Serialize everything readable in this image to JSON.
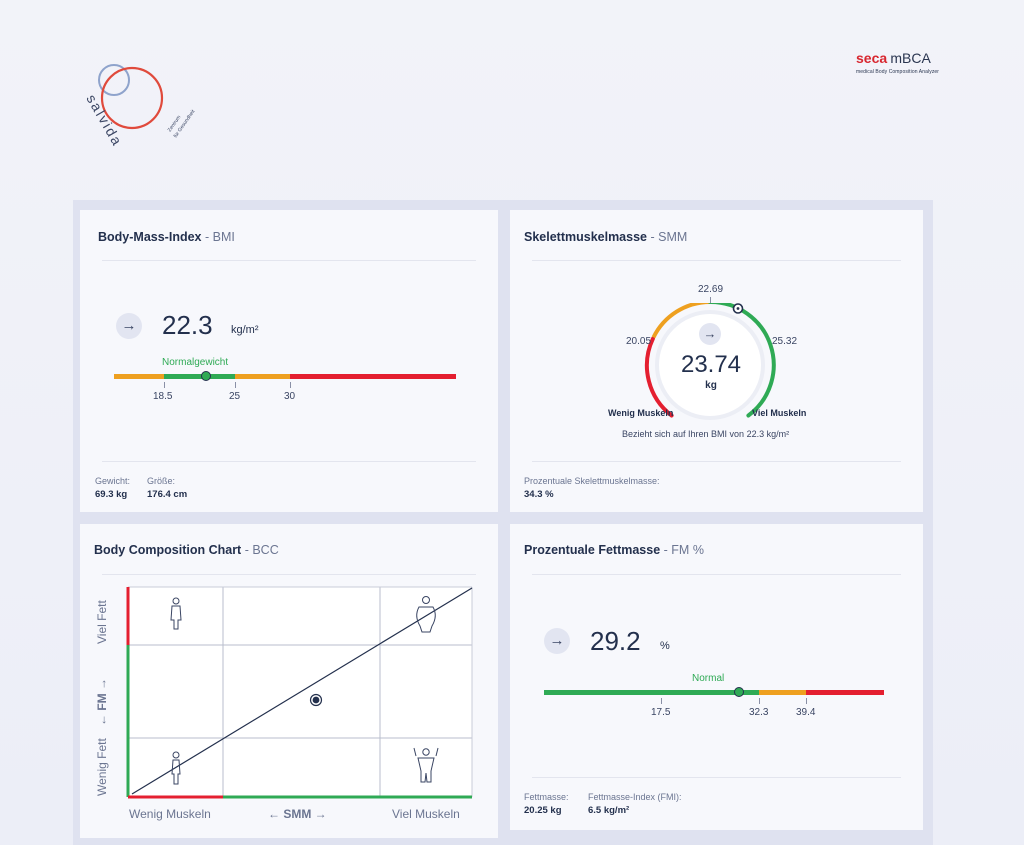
{
  "logos": {
    "salvida_word": "salvida",
    "salvida_tagline1": "Zentrum",
    "salvida_tagline2": "für Gesundheit",
    "seca_word": "seca",
    "mbca_word": "mBCA",
    "seca_subtitle": "medical Body Composition Analyzer"
  },
  "bmi": {
    "title": "Body-Mass-Index",
    "abbr": "- BMI",
    "arrow": "→",
    "value": "22.3",
    "unit": "kg/m²",
    "category": "Normalgewicht",
    "ticks": [
      "18.5",
      "25",
      "30"
    ],
    "foot": [
      {
        "label": "Gewicht:",
        "value": "69.3 kg"
      },
      {
        "label": "Größe:",
        "value": "176.4 cm"
      }
    ]
  },
  "smm": {
    "title": "Skelettmuskelmasse",
    "abbr": "- SMM",
    "arrow": "→",
    "value": "23.74",
    "unit": "kg",
    "tick_top": "22.69",
    "tick_left": "20.05",
    "tick_right": "25.32",
    "label_left": "Wenig Muskeln",
    "label_right": "Viel Muskeln",
    "note": "Bezieht sich auf Ihren BMI von 22.3 kg/m²",
    "foot_label": "Prozentuale Skelettmuskelmasse:",
    "foot_value": "34.3 %"
  },
  "bcc": {
    "title": "Body Composition Chart",
    "abbr": "- BCC",
    "y_top": "Viel Fett",
    "y_mid": "← FM →",
    "y_bottom": "Wenig Fett",
    "x_left": "Wenig Muskeln",
    "x_mid": "← SMM →",
    "x_right": "Viel Muskeln"
  },
  "fm": {
    "title": "Prozentuale Fettmasse",
    "abbr": "- FM %",
    "arrow": "→",
    "value": "29.2",
    "unit": "%",
    "category": "Normal",
    "ticks": [
      "17.5",
      "32.3",
      "39.4"
    ],
    "foot": [
      {
        "label": "Fettmasse:",
        "value": "20.25 kg"
      },
      {
        "label": "Fettmasse-Index (FMI):",
        "value": "6.5 kg/m²"
      }
    ]
  },
  "colors": {
    "green": "#2faa55",
    "orange": "#eea020",
    "red": "#e41f30",
    "text": "#23304d"
  }
}
